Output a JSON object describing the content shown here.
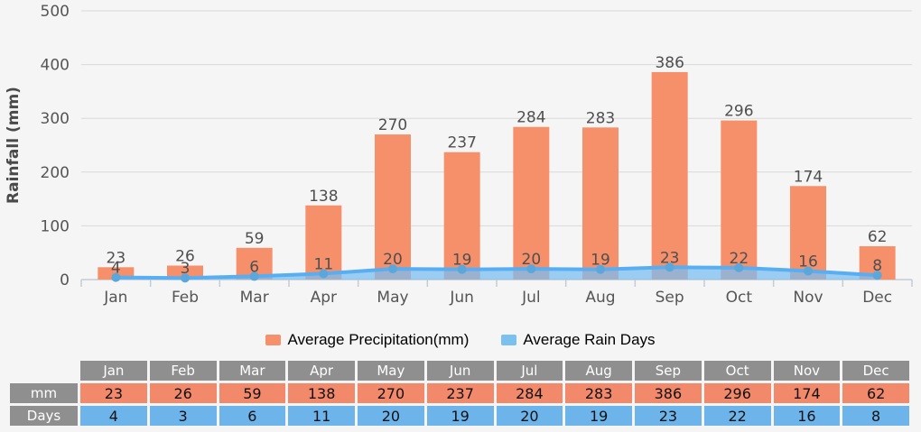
{
  "chart_data": {
    "type": "combo",
    "categories": [
      "Jan",
      "Feb",
      "Mar",
      "Apr",
      "May",
      "Jun",
      "Jul",
      "Aug",
      "Sep",
      "Oct",
      "Nov",
      "Dec"
    ],
    "series": [
      {
        "name": "Average Precipitation(mm)",
        "type": "bar",
        "values": [
          23,
          26,
          59,
          138,
          270,
          237,
          284,
          283,
          386,
          296,
          174,
          62
        ],
        "color": "#F5906B"
      },
      {
        "name": "Average Rain Days",
        "type": "area-line",
        "values": [
          4,
          3,
          6,
          11,
          20,
          19,
          20,
          19,
          23,
          22,
          16,
          8
        ],
        "line_color": "#58AEF2",
        "area_color": "#79BEF2",
        "area_opacity": 0.72,
        "marker_color": "#5BA7DB",
        "legend_color": "#7BC1F0"
      }
    ],
    "title": "",
    "xlabel": "",
    "ylabel": "Rainfall (mm)",
    "ylim": [
      0,
      500
    ],
    "yticks": [
      0,
      100,
      200,
      300,
      400,
      500
    ],
    "grid": true,
    "legend_position": "bottom-center"
  },
  "legend": {
    "items": [
      {
        "label": "Average Precipitation(mm)",
        "color": "#F5906B"
      },
      {
        "label": "Average Rain Days",
        "color": "#7BC1F0"
      }
    ]
  },
  "table": {
    "corner_label": "",
    "columns": [
      "Jan",
      "Feb",
      "Mar",
      "Apr",
      "May",
      "Jun",
      "Jul",
      "Aug",
      "Sep",
      "Oct",
      "Nov",
      "Dec"
    ],
    "rows": [
      {
        "label": "mm",
        "values": [
          23,
          26,
          59,
          138,
          270,
          237,
          284,
          283,
          386,
          296,
          174,
          62
        ],
        "bg": "#F1896A"
      },
      {
        "label": "Days",
        "values": [
          4,
          3,
          6,
          11,
          20,
          19,
          20,
          19,
          23,
          22,
          16,
          8
        ],
        "bg": "#6DB4EB"
      }
    ],
    "header_bg": "#8F8F8F",
    "label_bg": "#8F8F8F"
  },
  "colors": {
    "page_bg": "#F5F5F5",
    "grid": "#D9D9D9",
    "axis": "#C5CBD5",
    "tick_label": "#555555",
    "value_label": "#4F4F4F",
    "axis_title": "#4A4A4A",
    "table_header_text": "#FFFFFF",
    "table_value_text": "#111111"
  }
}
